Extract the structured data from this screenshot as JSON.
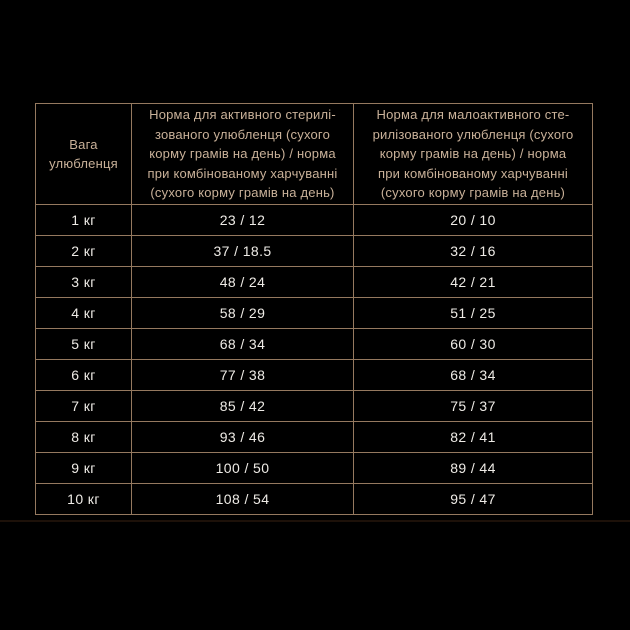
{
  "page": {
    "background": "#000000"
  },
  "colors": {
    "border": "#95795f",
    "header_text": "#c9b199",
    "cell_text": "#eeebe6",
    "faint_line": "#1d1109"
  },
  "chart_data": {
    "type": "table",
    "header": {
      "weight": "Вага\nулюбленця",
      "active": "Норма для активного стерилі-\nзованого улюбленця (сухого\nкорму грамів на день) / норма\nпри комбінованому харчуванні\n(сухого корму грамів на день)",
      "inactive": "Норма для малоактивного сте-\nрилізованого улюбленця (сухого\nкорму грамів на день) / норма\nпри комбінованому харчуванні\n(сухого корму грамів на день)"
    },
    "rows": [
      {
        "weight": "1 кг",
        "active": "23 / 12",
        "inactive": "20 / 10"
      },
      {
        "weight": "2 кг",
        "active": "37 / 18.5",
        "inactive": "32 / 16"
      },
      {
        "weight": "3 кг",
        "active": "48 / 24",
        "inactive": "42 / 21"
      },
      {
        "weight": "4 кг",
        "active": "58 / 29",
        "inactive": "51 / 25"
      },
      {
        "weight": "5 кг",
        "active": "68 / 34",
        "inactive": "60 / 30"
      },
      {
        "weight": "6 кг",
        "active": "77 / 38",
        "inactive": "68 / 34"
      },
      {
        "weight": "7 кг",
        "active": "85 / 42",
        "inactive": "75 / 37"
      },
      {
        "weight": "8 кг",
        "active": "93 / 46",
        "inactive": "82 / 41"
      },
      {
        "weight": "9 кг",
        "active": "100 / 50",
        "inactive": "89 / 44"
      },
      {
        "weight": "10 кг",
        "active": "108 / 54",
        "inactive": "95 / 47"
      }
    ]
  }
}
